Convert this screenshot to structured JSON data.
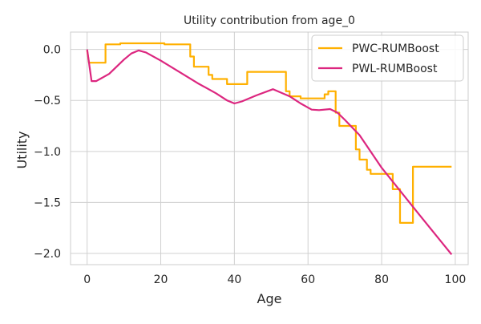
{
  "chart_data": {
    "type": "line",
    "title": "Utility contribution from age_0",
    "xlabel": "Age",
    "ylabel": "Utility",
    "xlim": [
      -4.5,
      103.5
    ],
    "ylim": [
      -2.11,
      0.17
    ],
    "x_ticks": [
      0,
      20,
      40,
      60,
      80,
      100
    ],
    "x_tick_labels": [
      "0",
      "20",
      "40",
      "60",
      "80",
      "100"
    ],
    "y_ticks": [
      0.0,
      -0.5,
      -1.0,
      -1.5,
      -2.0
    ],
    "y_tick_labels": [
      "0.0",
      "−0.5",
      "−1.0",
      "−1.5",
      "−2.0"
    ],
    "grid": true,
    "legend_position": "top-right",
    "series": [
      {
        "name": "PWC-RUMBoost",
        "color": "#FFB000",
        "step": true,
        "points": [
          [
            0,
            -0.01
          ],
          [
            0.5,
            -0.13
          ],
          [
            5,
            -0.13
          ],
          [
            5,
            0.05
          ],
          [
            9,
            0.05
          ],
          [
            9,
            0.06
          ],
          [
            21,
            0.06
          ],
          [
            21,
            0.05
          ],
          [
            28,
            0.05
          ],
          [
            28,
            -0.07
          ],
          [
            29,
            -0.07
          ],
          [
            29,
            -0.17
          ],
          [
            33,
            -0.17
          ],
          [
            33,
            -0.25
          ],
          [
            34,
            -0.25
          ],
          [
            34,
            -0.29
          ],
          [
            38,
            -0.29
          ],
          [
            38,
            -0.34
          ],
          [
            43.5,
            -0.34
          ],
          [
            43.5,
            -0.22
          ],
          [
            54,
            -0.22
          ],
          [
            54,
            -0.41
          ],
          [
            55,
            -0.41
          ],
          [
            55,
            -0.46
          ],
          [
            58,
            -0.46
          ],
          [
            58,
            -0.48
          ],
          [
            64.5,
            -0.48
          ],
          [
            64.5,
            -0.44
          ],
          [
            65.5,
            -0.44
          ],
          [
            65.5,
            -0.41
          ],
          [
            67.5,
            -0.41
          ],
          [
            67.5,
            -0.62
          ],
          [
            68.5,
            -0.62
          ],
          [
            68.5,
            -0.75
          ],
          [
            73,
            -0.75
          ],
          [
            73,
            -0.98
          ],
          [
            74,
            -0.98
          ],
          [
            74,
            -1.08
          ],
          [
            76,
            -1.08
          ],
          [
            76,
            -1.18
          ],
          [
            77,
            -1.18
          ],
          [
            77,
            -1.22
          ],
          [
            83,
            -1.22
          ],
          [
            83,
            -1.37
          ],
          [
            85,
            -1.37
          ],
          [
            85,
            -1.7
          ],
          [
            88.5,
            -1.7
          ],
          [
            88.5,
            -1.15
          ],
          [
            99,
            -1.15
          ]
        ]
      },
      {
        "name": "PWL-RUMBoost",
        "color": "#DC267F",
        "step": false,
        "points": [
          [
            0,
            0.0
          ],
          [
            1.2,
            -0.31
          ],
          [
            2.5,
            -0.31
          ],
          [
            6,
            -0.24
          ],
          [
            10,
            -0.1
          ],
          [
            12,
            -0.04
          ],
          [
            14,
            -0.01
          ],
          [
            16,
            -0.03
          ],
          [
            20,
            -0.11
          ],
          [
            25,
            -0.22
          ],
          [
            30,
            -0.33
          ],
          [
            35,
            -0.43
          ],
          [
            38,
            -0.5
          ],
          [
            40,
            -0.53
          ],
          [
            42,
            -0.51
          ],
          [
            46,
            -0.45
          ],
          [
            50.5,
            -0.39
          ],
          [
            55,
            -0.46
          ],
          [
            58,
            -0.53
          ],
          [
            61,
            -0.59
          ],
          [
            63,
            -0.595
          ],
          [
            66,
            -0.585
          ],
          [
            68,
            -0.62
          ],
          [
            70,
            -0.69
          ],
          [
            74,
            -0.84
          ],
          [
            80,
            -1.16
          ],
          [
            90,
            -1.61
          ],
          [
            99,
            -2.01
          ]
        ]
      }
    ]
  }
}
